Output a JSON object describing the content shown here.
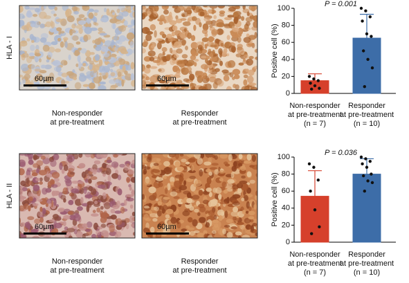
{
  "panels": {
    "row_labels": [
      "HLA - I",
      "HLA - II"
    ],
    "scale_bar": "60µm",
    "captions": [
      [
        "Non-responder",
        "at pre-treatment"
      ],
      [
        "Responder",
        "at pre-treatment"
      ]
    ]
  },
  "chart_data": [
    {
      "type": "bar",
      "annotation": "P = 0.001",
      "ylabel": "Positive cell (%)",
      "categories": [
        [
          "Non-responder",
          "at pre-treatment",
          "(n = 7)"
        ],
        [
          "Responder",
          "at pre-treatment",
          "(n = 10)"
        ]
      ],
      "values": [
        15,
        65
      ],
      "errors": [
        8,
        28
      ],
      "points": [
        [
          20,
          17,
          15,
          12,
          9,
          6,
          5
        ],
        [
          100,
          97,
          90,
          85,
          70,
          67,
          50,
          40,
          30,
          8
        ]
      ],
      "colors": [
        "#d6402b",
        "#3d6da8"
      ],
      "ylim": [
        0,
        100
      ],
      "yticks": [
        0,
        20,
        40,
        60,
        80,
        100
      ]
    },
    {
      "type": "bar",
      "annotation": "P = 0.036",
      "ylabel": "Positive cell (%)",
      "categories": [
        [
          "Non-responder",
          "at pre-treatment",
          "(n = 7)"
        ],
        [
          "Responder",
          "at pre-treatment",
          "(n = 10)"
        ]
      ],
      "values": [
        54,
        80
      ],
      "errors": [
        30,
        18
      ],
      "points": [
        [
          92,
          88,
          73,
          60,
          38,
          18,
          10
        ],
        [
          100,
          98,
          95,
          92,
          88,
          80,
          78,
          72,
          70,
          60
        ]
      ],
      "colors": [
        "#d6402b",
        "#3d6da8"
      ],
      "ylim": [
        0,
        100
      ],
      "yticks": [
        0,
        20,
        40,
        60,
        80,
        100
      ]
    }
  ]
}
